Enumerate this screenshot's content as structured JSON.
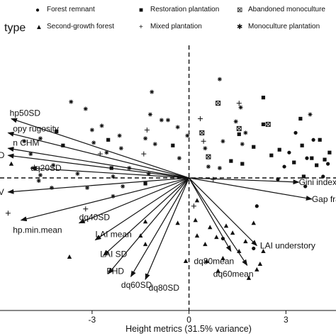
{
  "chart_data": {
    "type": "scatter",
    "title": "",
    "legend_title": "type",
    "legend_placement": "top",
    "xlabel": "Height metrics (31.5% variance)",
    "ylabel": "",
    "xlim": [
      -5.85,
      4.55
    ],
    "ylim": [
      -4.7,
      4.7
    ],
    "x_ticks": [
      -3,
      0,
      3
    ],
    "x_tick_labels": [
      "-3",
      "0",
      "3"
    ],
    "legend_entries": [
      {
        "name": "Forest remnant",
        "marker": "●"
      },
      {
        "name": "Restoration plantation",
        "marker": "■"
      },
      {
        "name": "Abandoned monoculture",
        "marker": "⊠"
      },
      {
        "name": "Second-growth forest",
        "marker": "▲"
      },
      {
        "name": "Mixed plantation",
        "marker": "+"
      },
      {
        "name": "Monoculture plantation",
        "marker": "✱"
      }
    ],
    "loadings": [
      {
        "label": "hp50SD",
        "x": -5.5,
        "y": 2.1,
        "label_x": -5.55,
        "label_y": 2.3
      },
      {
        "label": "opy rugosity",
        "x": -5.6,
        "y": 1.6,
        "label_x": -5.45,
        "label_y": 1.75
      },
      {
        "label": "n CHM",
        "x": -5.6,
        "y": 1.05,
        "label_x": -5.45,
        "label_y": 1.25
      },
      {
        "label": "D",
        "x": -5.6,
        "y": 0.8,
        "label_x": -5.9,
        "label_y": 0.8
      },
      {
        "label": "dq20SD",
        "x": -4.9,
        "y": 0.35,
        "label_x": -4.9,
        "label_y": 0.35
      },
      {
        "label": "V",
        "x": -5.6,
        "y": -0.5,
        "label_x": -5.9,
        "label_y": -0.5
      },
      {
        "label": "hp.min.mean",
        "x": -5.2,
        "y": -1.5,
        "label_x": -5.45,
        "label_y": -1.85
      },
      {
        "label": "dq40SD",
        "x": -3.4,
        "y": -1.6,
        "label_x": -3.4,
        "label_y": -1.4
      },
      {
        "label": "LAI mean",
        "x": -2.9,
        "y": -2.2,
        "label_x": -2.9,
        "label_y": -2.0
      },
      {
        "label": "LAI SD",
        "x": -2.65,
        "y": -2.75,
        "label_x": -2.75,
        "label_y": -2.7
      },
      {
        "label": "FHD",
        "x": -2.5,
        "y": -3.4,
        "label_x": -2.55,
        "label_y": -3.3
      },
      {
        "label": "dq60SD",
        "x": -1.8,
        "y": -3.5,
        "label_x": -2.1,
        "label_y": -3.8
      },
      {
        "label": "dq80SD",
        "x": -1.35,
        "y": -3.6,
        "label_x": -1.25,
        "label_y": -3.9
      },
      {
        "label": "Gini index",
        "x": 3.4,
        "y": -0.15,
        "label_x": 3.4,
        "label_y": -0.15
      },
      {
        "label": "Gap frac",
        "x": 3.8,
        "y": -0.75,
        "label_x": 3.8,
        "label_y": -0.75
      },
      {
        "label": "LAI understory",
        "x": 2.1,
        "y": -2.4,
        "label_x": 2.2,
        "label_y": -2.4
      },
      {
        "label": "dq80mean",
        "x": 1.3,
        "y": -2.6,
        "label_x": 0.15,
        "label_y": -2.95
      },
      {
        "label": "dq60mean",
        "x": 1.8,
        "y": -3.1,
        "label_x": 0.75,
        "label_y": -3.4
      }
    ],
    "points": {
      "forest_remnant": [
        [
          2.75,
          -0.05
        ],
        [
          2.95,
          0.4
        ],
        [
          3.65,
          0.7
        ],
        [
          3.1,
          0.9
        ],
        [
          3.85,
          1.35
        ],
        [
          4.3,
          0.5
        ],
        [
          3.3,
          1.6
        ],
        [
          4.15,
          0.05
        ],
        [
          2.1,
          -1.0
        ],
        [
          2.0,
          -2.5
        ],
        [
          1.05,
          -2.15
        ],
        [
          3.6,
          -0.3
        ]
      ],
      "restoration_plantation": [
        [
          -4.1,
          1.65
        ],
        [
          -3.9,
          1.15
        ],
        [
          -2.5,
          1.35
        ],
        [
          -2.4,
          0.35
        ],
        [
          -0.5,
          1.15
        ],
        [
          -1.35,
          -0.2
        ],
        [
          1.3,
          0.6
        ],
        [
          1.55,
          1.55
        ],
        [
          2.3,
          2.85
        ],
        [
          2.3,
          1.9
        ],
        [
          2.0,
          1.1
        ],
        [
          1.65,
          0.5
        ],
        [
          2.55,
          0.8
        ],
        [
          3.25,
          0.55
        ],
        [
          3.45,
          2.1
        ],
        [
          3.5,
          1.15
        ],
        [
          3.55,
          0.05
        ],
        [
          3.8,
          0.7
        ],
        [
          3.95,
          0.45
        ],
        [
          4.05,
          1.35
        ],
        [
          4.2,
          0.65
        ],
        [
          4.35,
          0.9
        ],
        [
          2.8,
          1.0
        ]
      ],
      "abandoned_monoculture": [
        [
          0.9,
          2.65
        ],
        [
          0.4,
          1.6
        ],
        [
          0.6,
          0.75
        ],
        [
          1.55,
          1.75
        ],
        [
          2.45,
          1.9
        ]
      ],
      "second_growth_forest": [
        [
          -5.5,
          0.5
        ],
        [
          -3.7,
          -2.8
        ],
        [
          -1.35,
          -1.55
        ],
        [
          -1.5,
          -2.05
        ],
        [
          -1.35,
          -2.35
        ],
        [
          -0.35,
          -1.6
        ],
        [
          0.25,
          -0.8
        ],
        [
          0.2,
          -1.5
        ],
        [
          0.25,
          -2.05
        ],
        [
          0.5,
          -2.35
        ],
        [
          0.65,
          -1.75
        ],
        [
          0.85,
          -2.1
        ],
        [
          1.05,
          -2.85
        ],
        [
          1.15,
          -1.7
        ],
        [
          1.35,
          -1.95
        ],
        [
          1.55,
          -2.6
        ],
        [
          1.75,
          -2.25
        ],
        [
          2.0,
          -1.6
        ],
        [
          2.2,
          -3.05
        ],
        [
          2.1,
          -3.25
        ],
        [
          2.3,
          -2.6
        ],
        [
          -0.1,
          -2.95
        ],
        [
          0.55,
          -2.95
        ],
        [
          0.9,
          -3.3
        ],
        [
          1.85,
          -3.55
        ]
      ],
      "mixed_plantation": [
        [
          -5.6,
          -1.25
        ],
        [
          -3.2,
          -1.1
        ],
        [
          -2.75,
          0.85
        ],
        [
          -1.4,
          0.85
        ],
        [
          0.35,
          2.1
        ],
        [
          0.45,
          1.3
        ],
        [
          -1.3,
          1.7
        ],
        [
          1.55,
          2.65
        ],
        [
          0.75,
          -0.05
        ],
        [
          0.15,
          -1.0
        ]
      ],
      "monoculture_plantation": [
        [
          -3.65,
          2.7
        ],
        [
          -3.2,
          2.45
        ],
        [
          -3.0,
          1.7
        ],
        [
          -2.7,
          1.85
        ],
        [
          -2.55,
          0.9
        ],
        [
          -2.15,
          1.5
        ],
        [
          -2.05,
          -0.3
        ],
        [
          -1.35,
          1.4
        ],
        [
          -1.05,
          1.2
        ],
        [
          -1.2,
          2.25
        ],
        [
          -1.15,
          3.05
        ],
        [
          -0.85,
          2.05
        ],
        [
          -0.65,
          2.05
        ],
        [
          -0.35,
          1.8
        ],
        [
          -0.05,
          1.5
        ],
        [
          -2.35,
          0.05
        ],
        [
          -3.15,
          -0.35
        ],
        [
          -3.45,
          0.15
        ],
        [
          -2.35,
          -0.65
        ],
        [
          -4.2,
          0.45
        ],
        [
          -4.25,
          -0.35
        ],
        [
          -4.6,
          0.1
        ],
        [
          -5.1,
          1.3
        ],
        [
          -4.9,
          0.85
        ],
        [
          -4.6,
          1.4
        ],
        [
          -4.65,
          -0.1
        ],
        [
          -2.95,
          1.25
        ],
        [
          -2.1,
          1.05
        ],
        [
          -1.85,
          0.35
        ],
        [
          -1.25,
          0.15
        ],
        [
          -0.3,
          0.7
        ],
        [
          0.95,
          3.5
        ],
        [
          1.6,
          2.5
        ],
        [
          1.45,
          2.0
        ],
        [
          1.05,
          1.3
        ],
        [
          0.5,
          1.05
        ],
        [
          0.6,
          0.4
        ],
        [
          0.95,
          0.35
        ],
        [
          1.75,
          1.6
        ],
        [
          1.65,
          1.2
        ],
        [
          3.75,
          2.25
        ]
      ]
    }
  }
}
